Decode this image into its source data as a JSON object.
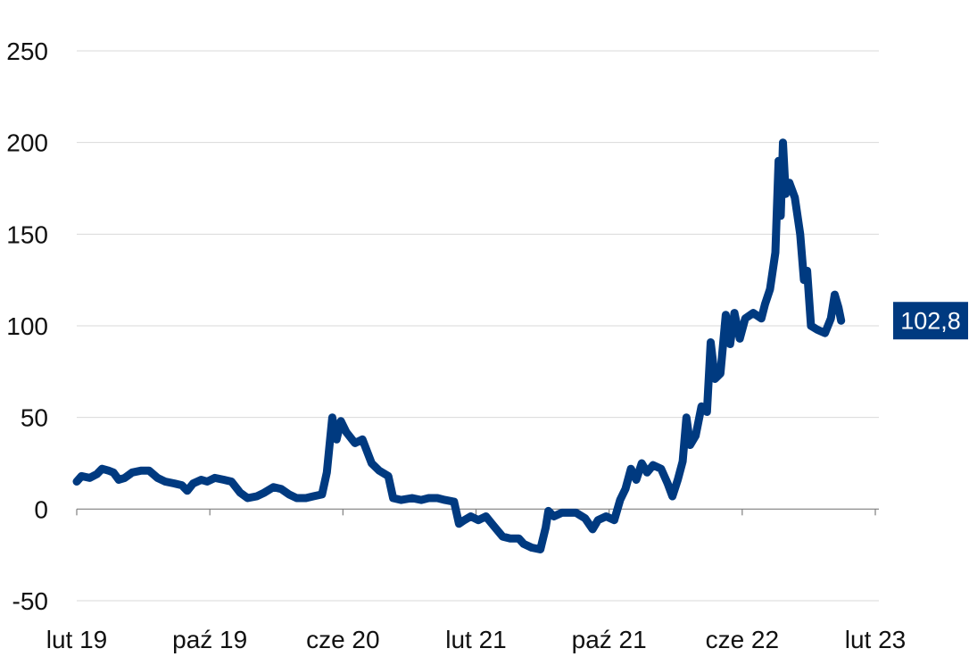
{
  "chart_data": {
    "type": "line",
    "title": "",
    "xlabel": "",
    "ylabel": "",
    "ylim": [
      -50,
      250
    ],
    "yticks": [
      250,
      200,
      150,
      100,
      50,
      0,
      -50
    ],
    "xticks": [
      "lut 19",
      "paź 19",
      "cze 20",
      "lut 21",
      "paź 21",
      "cze 22",
      "lut 23"
    ],
    "xlim": [
      "2019-02-01",
      "2023-02-28"
    ],
    "grid": true,
    "legend": "none",
    "line_color": "#003a80",
    "end_label": "102,8",
    "series": [
      {
        "points": [
          [
            "2019-02-01",
            15
          ],
          [
            "2019-02-10",
            18
          ],
          [
            "2019-02-25",
            17
          ],
          [
            "2019-03-10",
            19
          ],
          [
            "2019-03-20",
            22
          ],
          [
            "2019-04-01",
            21
          ],
          [
            "2019-04-10",
            20
          ],
          [
            "2019-04-20",
            16
          ],
          [
            "2019-05-01",
            17
          ],
          [
            "2019-05-15",
            20
          ],
          [
            "2019-06-01",
            21
          ],
          [
            "2019-06-15",
            21
          ],
          [
            "2019-07-01",
            17
          ],
          [
            "2019-07-15",
            15
          ],
          [
            "2019-08-01",
            14
          ],
          [
            "2019-08-15",
            13
          ],
          [
            "2019-08-25",
            10
          ],
          [
            "2019-09-05",
            14
          ],
          [
            "2019-09-20",
            16
          ],
          [
            "2019-10-01",
            15
          ],
          [
            "2019-10-15",
            17
          ],
          [
            "2019-11-01",
            16
          ],
          [
            "2019-11-15",
            15
          ],
          [
            "2019-12-01",
            9
          ],
          [
            "2019-12-15",
            6
          ],
          [
            "2020-01-01",
            7
          ],
          [
            "2020-01-15",
            9
          ],
          [
            "2020-02-01",
            12
          ],
          [
            "2020-02-15",
            11
          ],
          [
            "2020-03-01",
            8
          ],
          [
            "2020-03-15",
            6
          ],
          [
            "2020-04-01",
            6
          ],
          [
            "2020-04-15",
            7
          ],
          [
            "2020-05-01",
            8
          ],
          [
            "2020-05-10",
            20
          ],
          [
            "2020-05-20",
            50
          ],
          [
            "2020-05-28",
            38
          ],
          [
            "2020-06-05",
            48
          ],
          [
            "2020-06-15",
            42
          ],
          [
            "2020-07-01",
            36
          ],
          [
            "2020-07-15",
            38
          ],
          [
            "2020-08-01",
            25
          ],
          [
            "2020-08-15",
            21
          ],
          [
            "2020-09-01",
            18
          ],
          [
            "2020-09-10",
            6
          ],
          [
            "2020-09-25",
            5
          ],
          [
            "2020-10-15",
            6
          ],
          [
            "2020-11-01",
            5
          ],
          [
            "2020-11-15",
            6
          ],
          [
            "2020-12-01",
            6
          ],
          [
            "2020-12-15",
            5
          ],
          [
            "2021-01-01",
            4
          ],
          [
            "2021-01-10",
            -8
          ],
          [
            "2021-01-20",
            -6
          ],
          [
            "2021-02-01",
            -4
          ],
          [
            "2021-02-15",
            -6
          ],
          [
            "2021-03-01",
            -4
          ],
          [
            "2021-03-15",
            -9
          ],
          [
            "2021-04-01",
            -15
          ],
          [
            "2021-04-15",
            -16
          ],
          [
            "2021-05-01",
            -16
          ],
          [
            "2021-05-10",
            -19
          ],
          [
            "2021-05-25",
            -21
          ],
          [
            "2021-06-10",
            -22
          ],
          [
            "2021-06-20",
            -10
          ],
          [
            "2021-06-25",
            -1
          ],
          [
            "2021-07-05",
            -4
          ],
          [
            "2021-07-20",
            -2
          ],
          [
            "2021-08-01",
            -2
          ],
          [
            "2021-08-15",
            -2
          ],
          [
            "2021-09-01",
            -5
          ],
          [
            "2021-09-15",
            -11
          ],
          [
            "2021-09-25",
            -6
          ],
          [
            "2021-10-10",
            -4
          ],
          [
            "2021-10-25",
            -6
          ],
          [
            "2021-11-05",
            5
          ],
          [
            "2021-11-15",
            11
          ],
          [
            "2021-11-25",
            22
          ],
          [
            "2021-12-05",
            16
          ],
          [
            "2021-12-15",
            25
          ],
          [
            "2021-12-25",
            20
          ],
          [
            "2022-01-05",
            24
          ],
          [
            "2022-01-20",
            22
          ],
          [
            "2022-02-01",
            14
          ],
          [
            "2022-02-10",
            7
          ],
          [
            "2022-02-20",
            16
          ],
          [
            "2022-03-01",
            26
          ],
          [
            "2022-03-08",
            50
          ],
          [
            "2022-03-15",
            35
          ],
          [
            "2022-03-25",
            40
          ],
          [
            "2022-04-05",
            56
          ],
          [
            "2022-04-15",
            53
          ],
          [
            "2022-04-22",
            91
          ],
          [
            "2022-04-30",
            71
          ],
          [
            "2022-05-10",
            74
          ],
          [
            "2022-05-20",
            106
          ],
          [
            "2022-05-28",
            90
          ],
          [
            "2022-06-05",
            107
          ],
          [
            "2022-06-15",
            93
          ],
          [
            "2022-06-25",
            104
          ],
          [
            "2022-07-10",
            107
          ],
          [
            "2022-07-25",
            104
          ],
          [
            "2022-08-01",
            112
          ],
          [
            "2022-08-10",
            120
          ],
          [
            "2022-08-20",
            140
          ],
          [
            "2022-08-26",
            190
          ],
          [
            "2022-08-30",
            160
          ],
          [
            "2022-09-03",
            200
          ],
          [
            "2022-09-08",
            172
          ],
          [
            "2022-09-15",
            178
          ],
          [
            "2022-09-25",
            170
          ],
          [
            "2022-10-05",
            150
          ],
          [
            "2022-10-12",
            125
          ],
          [
            "2022-10-18",
            130
          ],
          [
            "2022-10-25",
            100
          ],
          [
            "2022-11-05",
            98
          ],
          [
            "2022-11-20",
            96
          ],
          [
            "2022-12-01",
            104
          ],
          [
            "2022-12-08",
            117
          ],
          [
            "2022-12-15",
            110
          ],
          [
            "2022-12-20",
            102.8
          ]
        ]
      }
    ]
  }
}
